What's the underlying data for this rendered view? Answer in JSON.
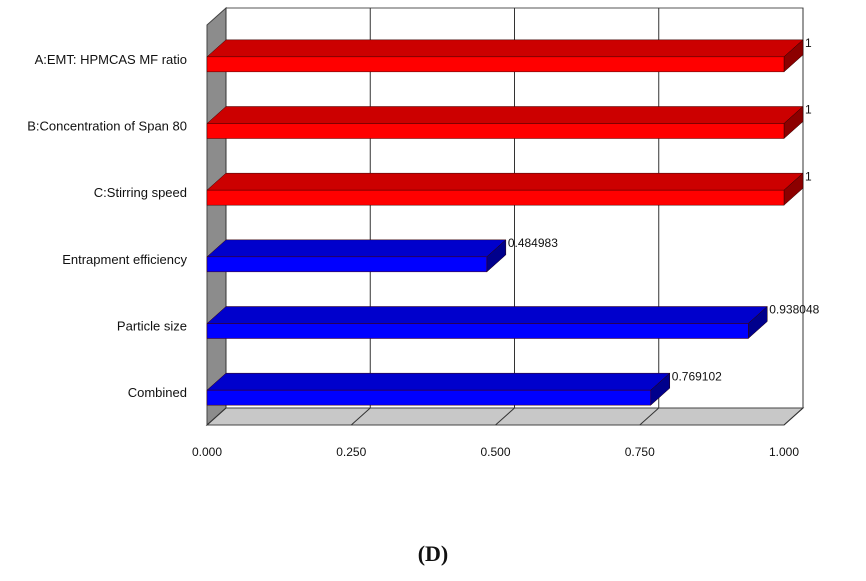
{
  "chart_data": {
    "type": "bar3d-horizontal",
    "categories": [
      "A:EMT: HPMCAS MF ratio",
      "B:Concentration of Span 80",
      "C:Stirring speed",
      "Entrapment efficiency",
      "Particle size",
      "Combined"
    ],
    "values": [
      1,
      1,
      1,
      0.484983,
      0.938048,
      0.769102
    ],
    "colors": [
      "#ff0000",
      "#ff0000",
      "#ff0000",
      "#0000ff",
      "#0000ff",
      "#0000ff"
    ],
    "xlim": [
      0,
      1
    ],
    "xticks": [
      {
        "value": 0,
        "label": "0.000"
      },
      {
        "value": 0.25,
        "label": "0.250"
      },
      {
        "value": 0.5,
        "label": "0.500"
      },
      {
        "value": 0.75,
        "label": "0.750"
      },
      {
        "value": 1,
        "label": "1.000"
      }
    ],
    "grid": true,
    "caption": "(D)"
  }
}
